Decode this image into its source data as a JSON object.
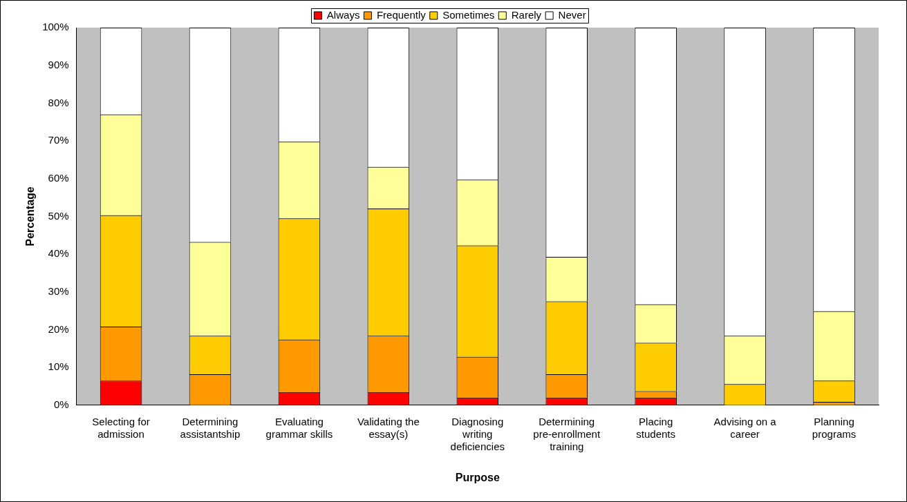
{
  "chart_data": {
    "type": "bar",
    "stacked": true,
    "xlabel": "Purpose",
    "ylabel": "Percentage",
    "categories": [
      "Selecting for admission",
      "Determining assistantship",
      "Evaluating grammar skills",
      "Validating the essay(s)",
      "Diagnosing writing deficiencies",
      "Determining pre-enrollment training",
      "Placing students",
      "Advising on a career",
      "Planning programs"
    ],
    "series": [
      {
        "name": "Always",
        "color": "#ff0000",
        "values": [
          6.5,
          0,
          3.5,
          3.5,
          2.0,
          2.0,
          2.0,
          0,
          0
        ]
      },
      {
        "name": "Frequently",
        "color": "#ff9900",
        "values": [
          14.3,
          8.2,
          13.9,
          14.9,
          10.8,
          6.2,
          1.7,
          0,
          0.9
        ]
      },
      {
        "name": "Sometimes",
        "color": "#ffcc00",
        "values": [
          29.5,
          10.2,
          32.1,
          33.7,
          29.5,
          19.3,
          12.8,
          5.6,
          5.6
        ]
      },
      {
        "name": "Rarely",
        "color": "#ffff99",
        "values": [
          26.7,
          24.8,
          20.3,
          11.0,
          17.4,
          11.8,
          10.2,
          12.8,
          18.4
        ]
      },
      {
        "name": "Never",
        "color": "#ffffff",
        "values": [
          23.0,
          56.8,
          30.2,
          36.9,
          40.3,
          60.7,
          73.3,
          81.6,
          75.1
        ]
      }
    ],
    "ylim": [
      0,
      100
    ],
    "yticks": [
      {
        "value": 0,
        "label": "0%"
      },
      {
        "value": 10,
        "label": "10%"
      },
      {
        "value": 20,
        "label": "20%"
      },
      {
        "value": 30,
        "label": "30%"
      },
      {
        "value": 40,
        "label": "40%"
      },
      {
        "value": 50,
        "label": "50%"
      },
      {
        "value": 60,
        "label": "60%"
      },
      {
        "value": 70,
        "label": "70%"
      },
      {
        "value": 80,
        "label": "80%"
      },
      {
        "value": 90,
        "label": "90%"
      },
      {
        "value": 100,
        "label": "100%"
      }
    ],
    "grid": false,
    "legend": "top"
  }
}
